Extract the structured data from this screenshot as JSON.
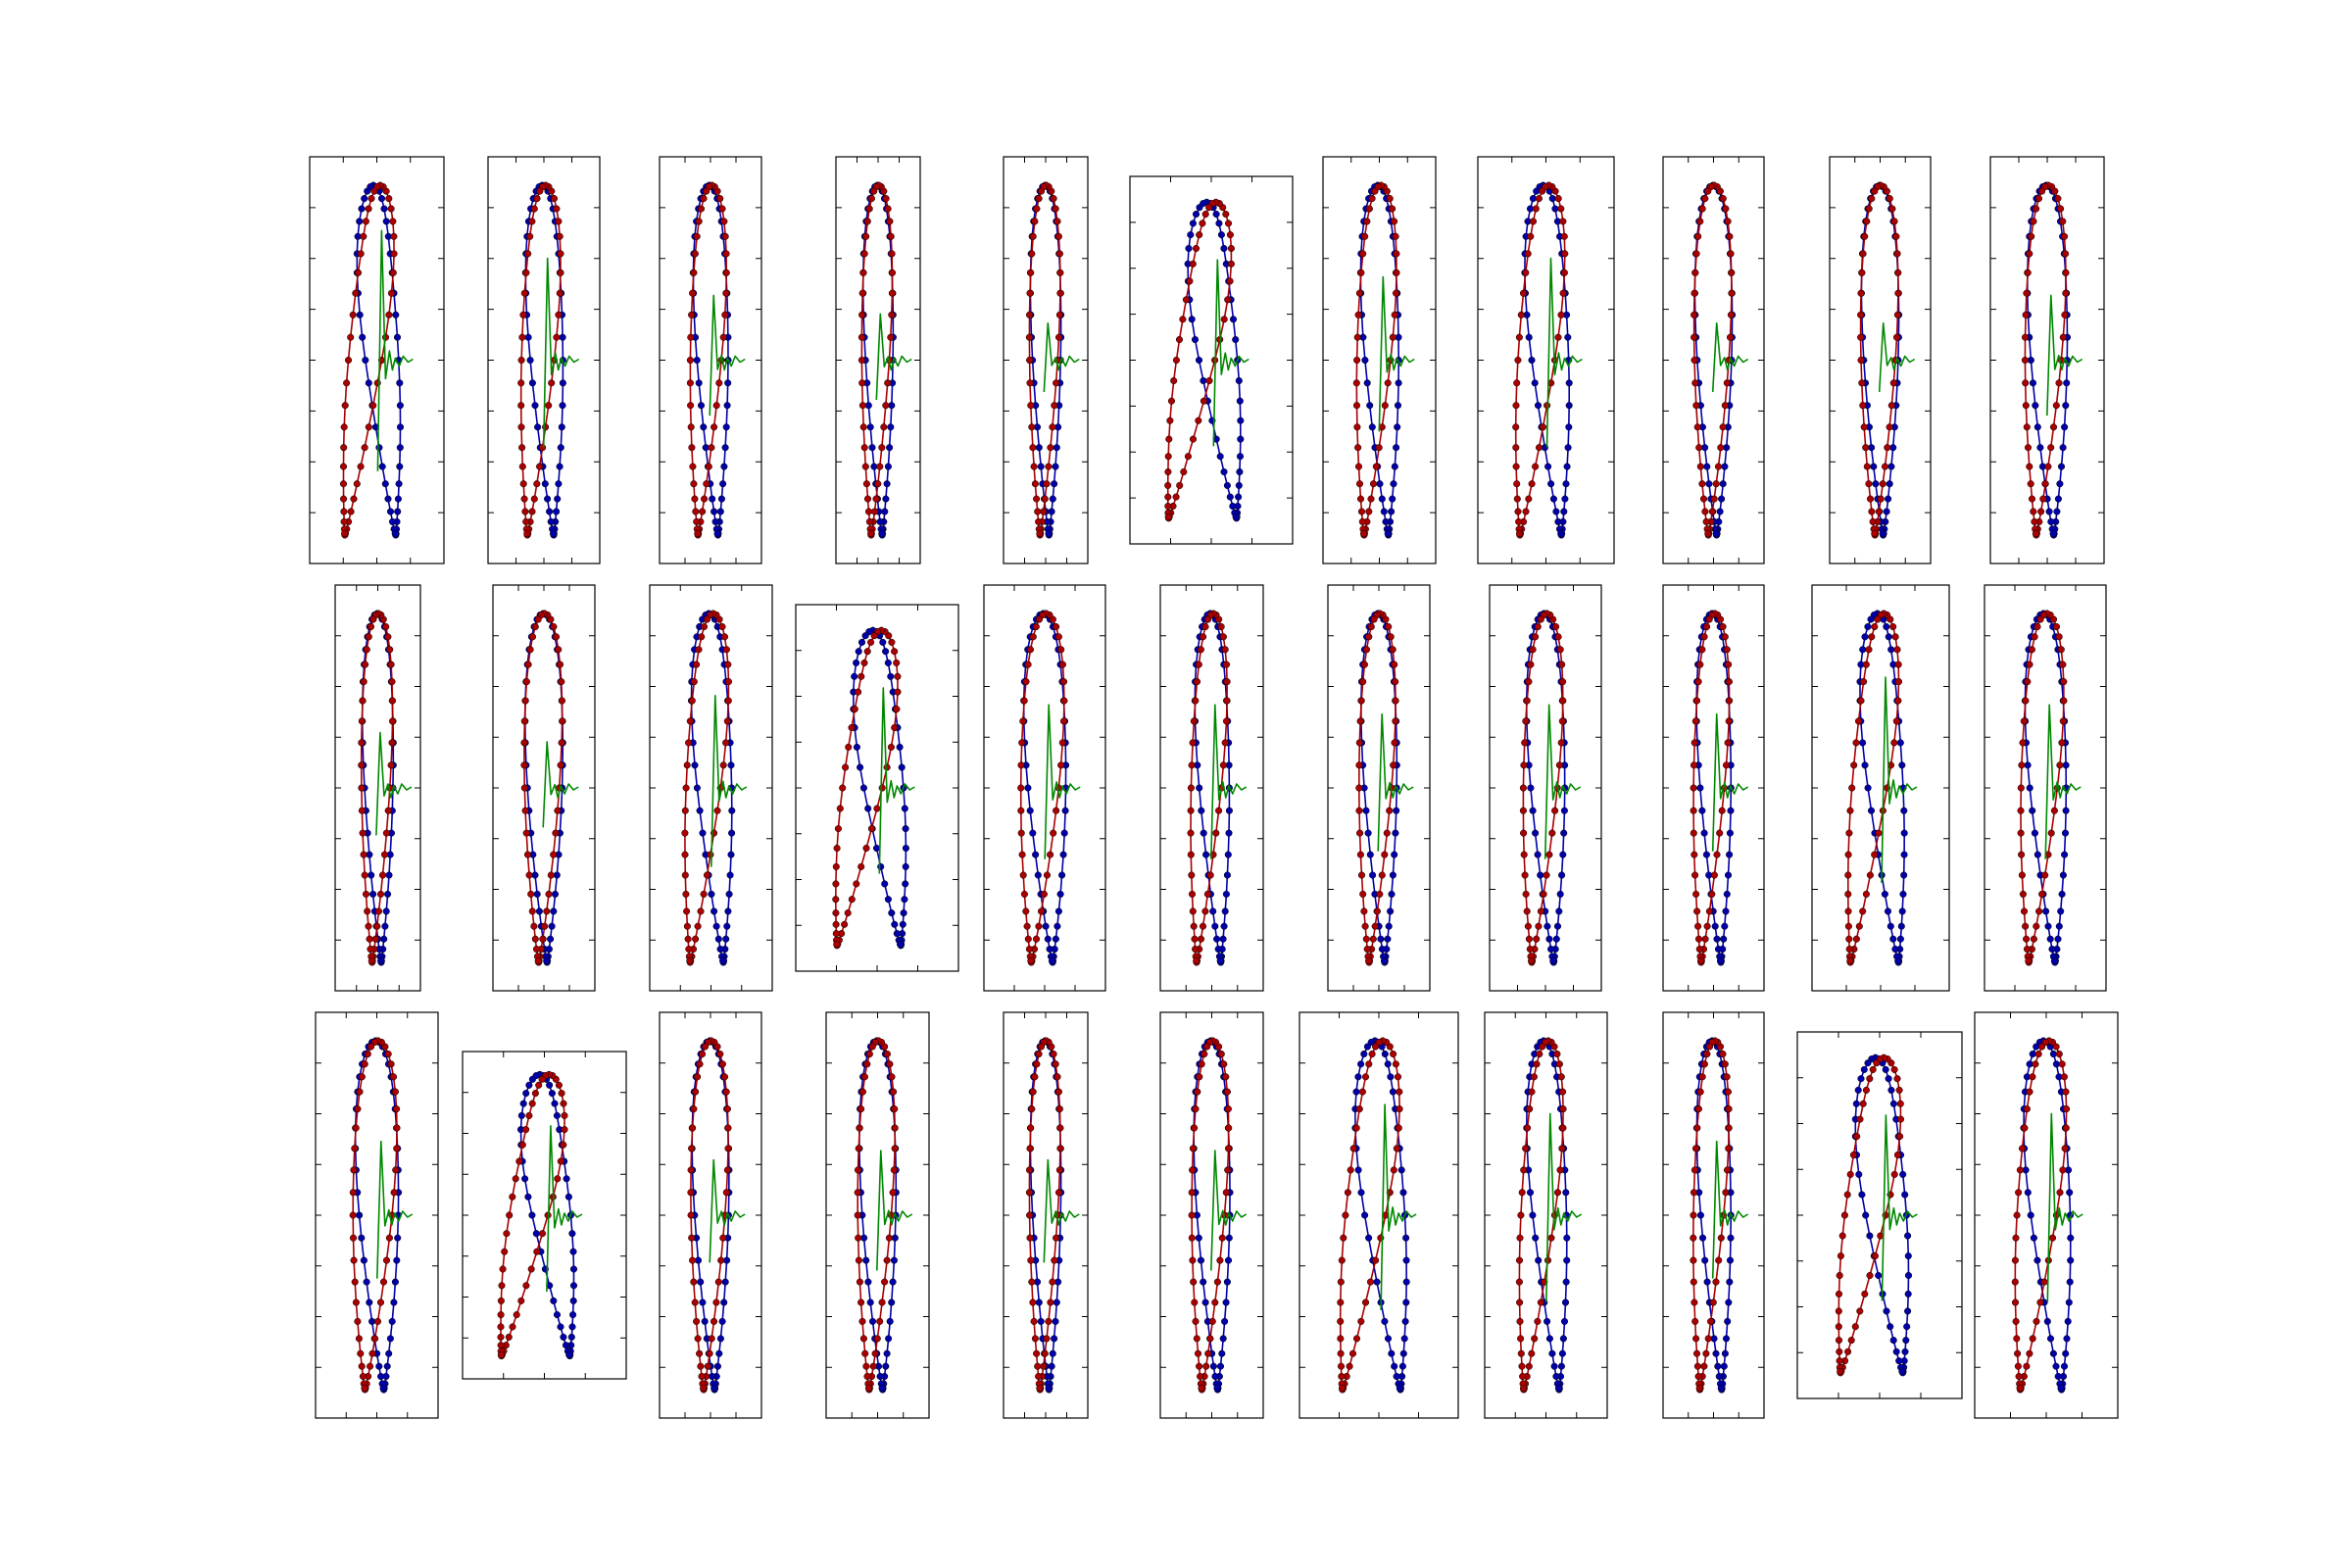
{
  "chart_data": {
    "type": "line",
    "description_free": true,
    "grid": false,
    "legend": "none",
    "layout": {
      "rows": 3,
      "cols": 11
    },
    "colors": {
      "blue": "#0000aa",
      "red": "#aa0000",
      "green": "#008800",
      "frame": "#000000"
    },
    "panels": [
      {
        "v": 1,
        "s": 0.95,
        "wx": 1.6,
        "tw": 0.7
      },
      {
        "v": 2,
        "s": 0.5,
        "wx": 1.25,
        "tw": 0.55
      },
      {
        "v": 1,
        "s": 0.4,
        "wx": 1.15,
        "tw": 0.35
      },
      {
        "v": 1,
        "s": 0.25,
        "wx": 0.9,
        "tw": 0.25
      },
      {
        "v": 1,
        "s": 0.2,
        "wx": 0.8,
        "tw": 0.2
      },
      {
        "v": 3,
        "s": 1.1,
        "wx": 2.0,
        "tw": 0.6
      },
      {
        "v": 2,
        "s": 0.45,
        "wx": 1.3,
        "tw": 0.45
      },
      {
        "v": 2,
        "s": 0.7,
        "wx": 1.55,
        "tw": 0.55
      },
      {
        "v": 2,
        "s": 0.15,
        "wx": 1.05,
        "tw": 0.2
      },
      {
        "v": 2,
        "s": 0.15,
        "wx": 1.05,
        "tw": 0.2
      },
      {
        "v": 2,
        "s": 0.3,
        "wx": 1.25,
        "tw": 0.35
      },
      {
        "v": 1,
        "s": 0.2,
        "wx": 0.9,
        "tw": 0.3
      },
      {
        "v": 2,
        "s": 0.15,
        "wx": 1.05,
        "tw": 0.25
      },
      {
        "v": 1,
        "s": 0.6,
        "wx": 1.45,
        "tw": 0.5
      },
      {
        "v": 3,
        "s": 1.0,
        "wx": 1.9,
        "tw": 0.6
      },
      {
        "v": 2,
        "s": 0.35,
        "wx": 1.4,
        "tw": 0.45
      },
      {
        "v": 1,
        "s": 0.5,
        "wx": 1.05,
        "tw": 0.45
      },
      {
        "v": 2,
        "s": 0.3,
        "wx": 1.2,
        "tw": 0.4
      },
      {
        "v": 2,
        "s": 0.4,
        "wx": 1.25,
        "tw": 0.45
      },
      {
        "v": 2,
        "s": 0.4,
        "wx": 1.15,
        "tw": 0.4
      },
      {
        "v": 1,
        "s": 0.85,
        "wx": 1.6,
        "tw": 0.6
      },
      {
        "v": 2,
        "s": 0.45,
        "wx": 1.4,
        "tw": 0.45
      },
      {
        "v": 2,
        "s": 0.3,
        "wx": 1.4,
        "tw": 0.4
      },
      {
        "v": 4,
        "s": 1.1,
        "wx": 1.7,
        "tw": 0.6
      },
      {
        "v": 2,
        "s": 0.2,
        "wx": 1.15,
        "tw": 0.3
      },
      {
        "v": 2,
        "s": 0.25,
        "wx": 1.2,
        "tw": 0.35
      },
      {
        "v": 2,
        "s": 0.2,
        "wx": 1.0,
        "tw": 0.3
      },
      {
        "v": 1,
        "s": 0.3,
        "wx": 1.2,
        "tw": 0.35
      },
      {
        "v": 1,
        "s": 0.9,
        "wx": 1.85,
        "tw": 0.6
      },
      {
        "v": 1,
        "s": 0.65,
        "wx": 1.55,
        "tw": 0.55
      },
      {
        "v": 2,
        "s": 0.45,
        "wx": 1.1,
        "tw": 0.4
      },
      {
        "v": 3,
        "s": 0.95,
        "wx": 1.95,
        "tw": 0.6
      },
      {
        "v": 1,
        "s": 0.65,
        "wx": 1.6,
        "tw": 0.55
      }
    ]
  }
}
